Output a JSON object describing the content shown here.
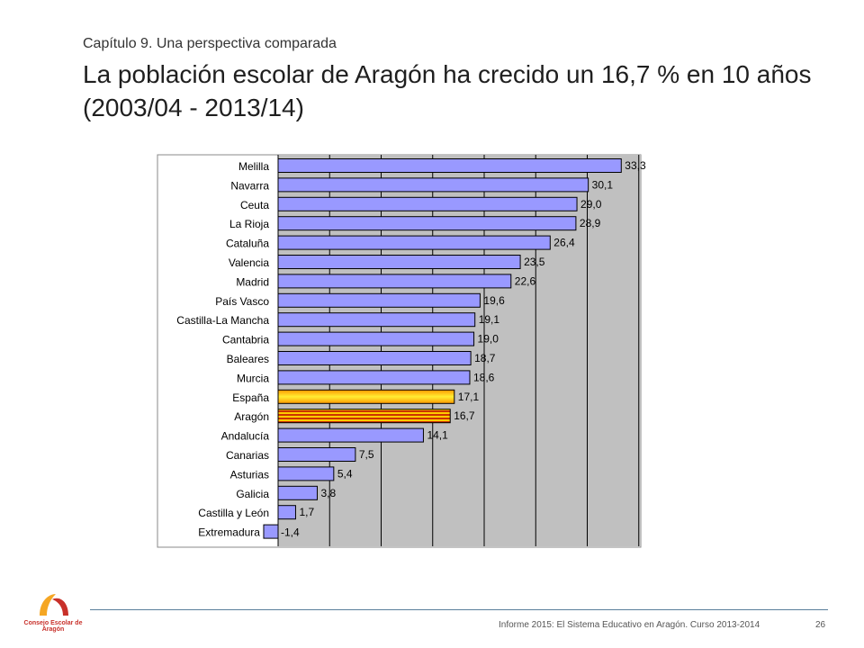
{
  "header": {
    "subtitle": "Capítulo 9. Una perspectiva comparada",
    "title": "La población escolar de Aragón ha crecido un 16,7 % en 10 años (2003/04 - 2013/14)"
  },
  "footer": {
    "text": "Informe 2015: El Sistema Educativo en Aragón. Curso 2013-2014",
    "page": "26",
    "logo_text": "Consejo Escolar de Aragón"
  },
  "colors": {
    "bar": "#9999ff",
    "bar_highlight_spain": "#ffcc00",
    "bar_highlight_aragon": "#cc3300",
    "plot_background": "#c0c0c0",
    "logo_accent": "#f5a623",
    "logo_red": "#c8302a"
  },
  "chart_data": {
    "type": "bar",
    "orientation": "horizontal",
    "categories": [
      "Melilla",
      "Navarra",
      "Ceuta",
      "La Rioja",
      "Cataluña",
      "Valencia",
      "Madrid",
      "País Vasco",
      "Castilla-La Mancha",
      "Cantabria",
      "Baleares",
      "Murcia",
      "España",
      "Aragón",
      "Andalucía",
      "Canarias",
      "Asturias",
      "Galicia",
      "Castilla y León",
      "Extremadura"
    ],
    "values": [
      33.3,
      30.1,
      29.0,
      28.9,
      26.4,
      23.5,
      22.6,
      19.6,
      19.1,
      19.0,
      18.7,
      18.6,
      17.1,
      16.7,
      14.1,
      7.5,
      5.4,
      3.8,
      1.7,
      -1.4
    ],
    "value_labels": [
      "33,3",
      "30,1",
      "29,0",
      "28,9",
      "26,4",
      "23,5",
      "22,6",
      "19,6",
      "19,1",
      "19,0",
      "18,7",
      "18,6",
      "17,1",
      "16,7",
      "14,1",
      "7,5",
      "5,4",
      "3,8",
      "1,7",
      "-1,4"
    ],
    "highlight": {
      "España": "gradient",
      "Aragón": "striped"
    },
    "xlim": [
      -5,
      35
    ],
    "grid": true,
    "legend": "none"
  }
}
